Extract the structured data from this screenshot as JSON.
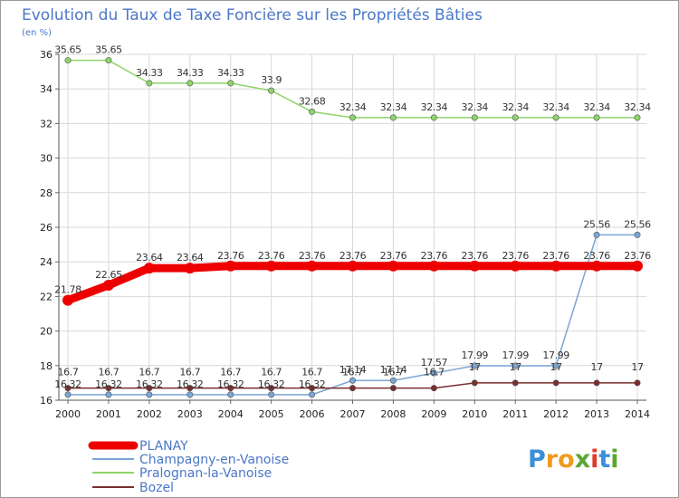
{
  "chart_data": {
    "type": "line",
    "title": "Evolution du Taux de Taxe Foncière sur les Propriétés Bâties",
    "unit_label": "(en %)",
    "xlabel": "",
    "ylabel": "(en %)",
    "ylim": [
      16,
      36
    ],
    "yticks": [
      16,
      18,
      20,
      22,
      24,
      26,
      28,
      30,
      32,
      34,
      36
    ],
    "grid": true,
    "categories": [
      "2000",
      "2001",
      "2002",
      "2003",
      "2004",
      "2005",
      "2006",
      "2007",
      "2008",
      "2009",
      "2010",
      "2011",
      "2012",
      "2013",
      "2014"
    ],
    "series": [
      {
        "name": "PLANAY",
        "color": "#ee0000",
        "values": [
          21.78,
          22.65,
          23.64,
          23.64,
          23.76,
          23.76,
          23.76,
          23.76,
          23.76,
          23.76,
          23.76,
          23.76,
          23.76,
          23.76,
          23.76
        ],
        "labels": [
          "21.78",
          "22.65",
          "23.64",
          "23.64",
          "23.76",
          "23.76",
          "23.76",
          "23.76",
          "23.76",
          "23.76",
          "23.76",
          "23.76",
          "23.76",
          "23.76",
          "23.76"
        ]
      },
      {
        "name": "Champagny-en-Vanoise",
        "color": "#7aa6d3",
        "values": [
          16.32,
          16.32,
          16.32,
          16.32,
          16.32,
          16.32,
          16.32,
          17.14,
          17.14,
          17.57,
          17.99,
          17.99,
          17.99,
          25.56,
          25.56
        ],
        "labels": [
          "16.32",
          "16.32",
          "16.32",
          "16.32",
          "16.32",
          "16.32",
          "16.32",
          "17.14",
          "17.14",
          "17.57",
          "17.99",
          "17.99",
          "17.99",
          "25.56",
          "25.56"
        ]
      },
      {
        "name": "Pralognan-la-Vanoise",
        "color": "#8ed46a",
        "values": [
          35.65,
          35.65,
          34.33,
          34.33,
          34.33,
          33.9,
          32.68,
          32.34,
          32.34,
          32.34,
          32.34,
          32.34,
          32.34,
          32.34,
          32.34
        ],
        "labels": [
          "35.65",
          "35.65",
          "34.33",
          "34.33",
          "34.33",
          "33.9",
          "32.68",
          "32.34",
          "32.34",
          "32.34",
          "32.34",
          "32.34",
          "32.34",
          "32.34",
          "32.34"
        ]
      },
      {
        "name": "Bozel",
        "color": "#7a2e2e",
        "values": [
          16.7,
          16.7,
          16.7,
          16.7,
          16.7,
          16.7,
          16.7,
          16.7,
          16.7,
          16.7,
          17,
          17,
          17,
          17,
          17
        ],
        "labels": [
          "16.7",
          "16.7",
          "16.7",
          "16.7",
          "16.7",
          "16.7",
          "16.7",
          "16.7",
          "16.7",
          "16.7",
          "17",
          "17",
          "17",
          "17",
          "17"
        ]
      }
    ],
    "legend": [
      "PLANAY",
      "Champagny-en-Vanoise",
      "Pralognan-la-Vanoise",
      "Bozel"
    ]
  },
  "logo": {
    "text": "Proxiti",
    "letters": [
      "P",
      "r",
      "o",
      "x",
      "i",
      "t",
      "i"
    ],
    "colors": [
      "#3a8fd8",
      "#f29a1d",
      "#f29a1d",
      "#5aa832",
      "#e03a2a",
      "#3a8fd8",
      "#5aa832"
    ]
  }
}
